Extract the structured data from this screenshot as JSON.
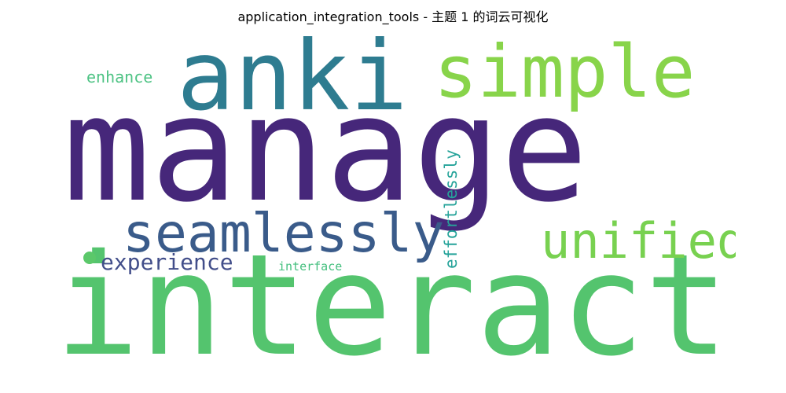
{
  "title": "application_integration_tools - 主题 1 的词云可视化",
  "words": [
    {
      "text": "manage",
      "color": "#46277a",
      "weight": 1.0
    },
    {
      "text": "interact",
      "color": "#54c46e",
      "weight": 0.98
    },
    {
      "text": "anki",
      "color": "#2e7c90",
      "weight": 0.62
    },
    {
      "text": "simple",
      "color": "#88d44a",
      "weight": 0.55
    },
    {
      "text": "seamlessly",
      "color": "#3a5b8a",
      "weight": 0.4
    },
    {
      "text": "unified",
      "color": "#78d150",
      "weight": 0.36
    },
    {
      "text": "experience",
      "color": "#424e8a",
      "weight": 0.18
    },
    {
      "text": "effortlessly",
      "color": "#26a39a",
      "weight": 0.16
    },
    {
      "text": "enhance",
      "color": "#4ec384",
      "weight": 0.14
    },
    {
      "text": "interface",
      "color": "#44bf7e",
      "weight": 0.11
    }
  ],
  "dot_color": "#5bc86a"
}
